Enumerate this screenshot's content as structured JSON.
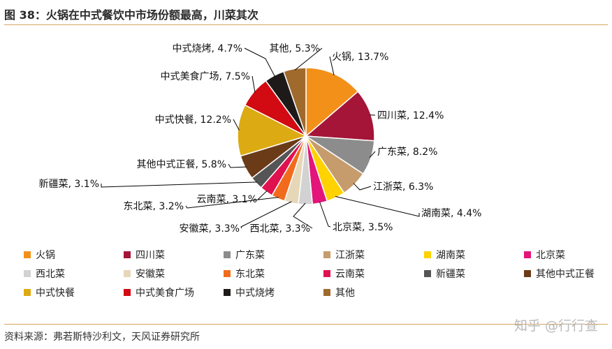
{
  "header": {
    "title": "图 38：火锅在中式餐饮中市场份额最高，川菜其次"
  },
  "footer": {
    "source": "资料来源：弗若斯特沙利文，天风证券研究所",
    "watermark": "知乎 @行行查"
  },
  "chart_data": {
    "type": "pie",
    "title": "",
    "slices": [
      {
        "name": "火锅",
        "value": 13.7,
        "label": "火锅, 13.7%",
        "color": "#f39019"
      },
      {
        "name": "四川菜",
        "value": 12.4,
        "label": "四川菜, 12.4%",
        "color": "#a51538"
      },
      {
        "name": "广东菜",
        "value": 8.2,
        "label": "广东菜, 8.2%",
        "color": "#8c8c8c"
      },
      {
        "name": "江浙菜",
        "value": 6.3,
        "label": "江浙菜, 6.3%",
        "color": "#c69c6d"
      },
      {
        "name": "湖南菜",
        "value": 4.4,
        "label": "湖南菜, 4.4%",
        "color": "#ffd200"
      },
      {
        "name": "北京菜",
        "value": 3.5,
        "label": "北京菜, 3.5%",
        "color": "#e4157a"
      },
      {
        "name": "西北菜",
        "value": 3.3,
        "label": "西北菜, 3.3%",
        "color": "#d2d2d2"
      },
      {
        "name": "安徽菜",
        "value": 3.3,
        "label": "安徽菜, 3.3%",
        "color": "#e6d7b9"
      },
      {
        "name": "东北菜",
        "value": 3.2,
        "label": "东北菜, 3.2%",
        "color": "#f26b1d"
      },
      {
        "name": "云南菜",
        "value": 3.1,
        "label": "云南菜, 3.1%",
        "color": "#e0114f"
      },
      {
        "name": "新疆菜",
        "value": 3.1,
        "label": "新疆菜, 3.1%",
        "color": "#555555"
      },
      {
        "name": "其他中式正餐",
        "value": 5.8,
        "label": "其他中式正餐, 5.8%",
        "color": "#6b3a17"
      },
      {
        "name": "中式快餐",
        "value": 12.2,
        "label": "中式快餐, 12.2%",
        "color": "#dcaa12"
      },
      {
        "name": "中式美食广场",
        "value": 7.5,
        "label": "中式美食广场, 7.5%",
        "color": "#d20a12"
      },
      {
        "name": "中式烧烤",
        "value": 4.7,
        "label": "中式烧烤, 4.7%",
        "color": "#1e1a1a"
      },
      {
        "name": "其他",
        "value": 5.3,
        "label": "其他, 5.3%",
        "color": "#a06a2c"
      }
    ],
    "legend_position": "bottom"
  }
}
